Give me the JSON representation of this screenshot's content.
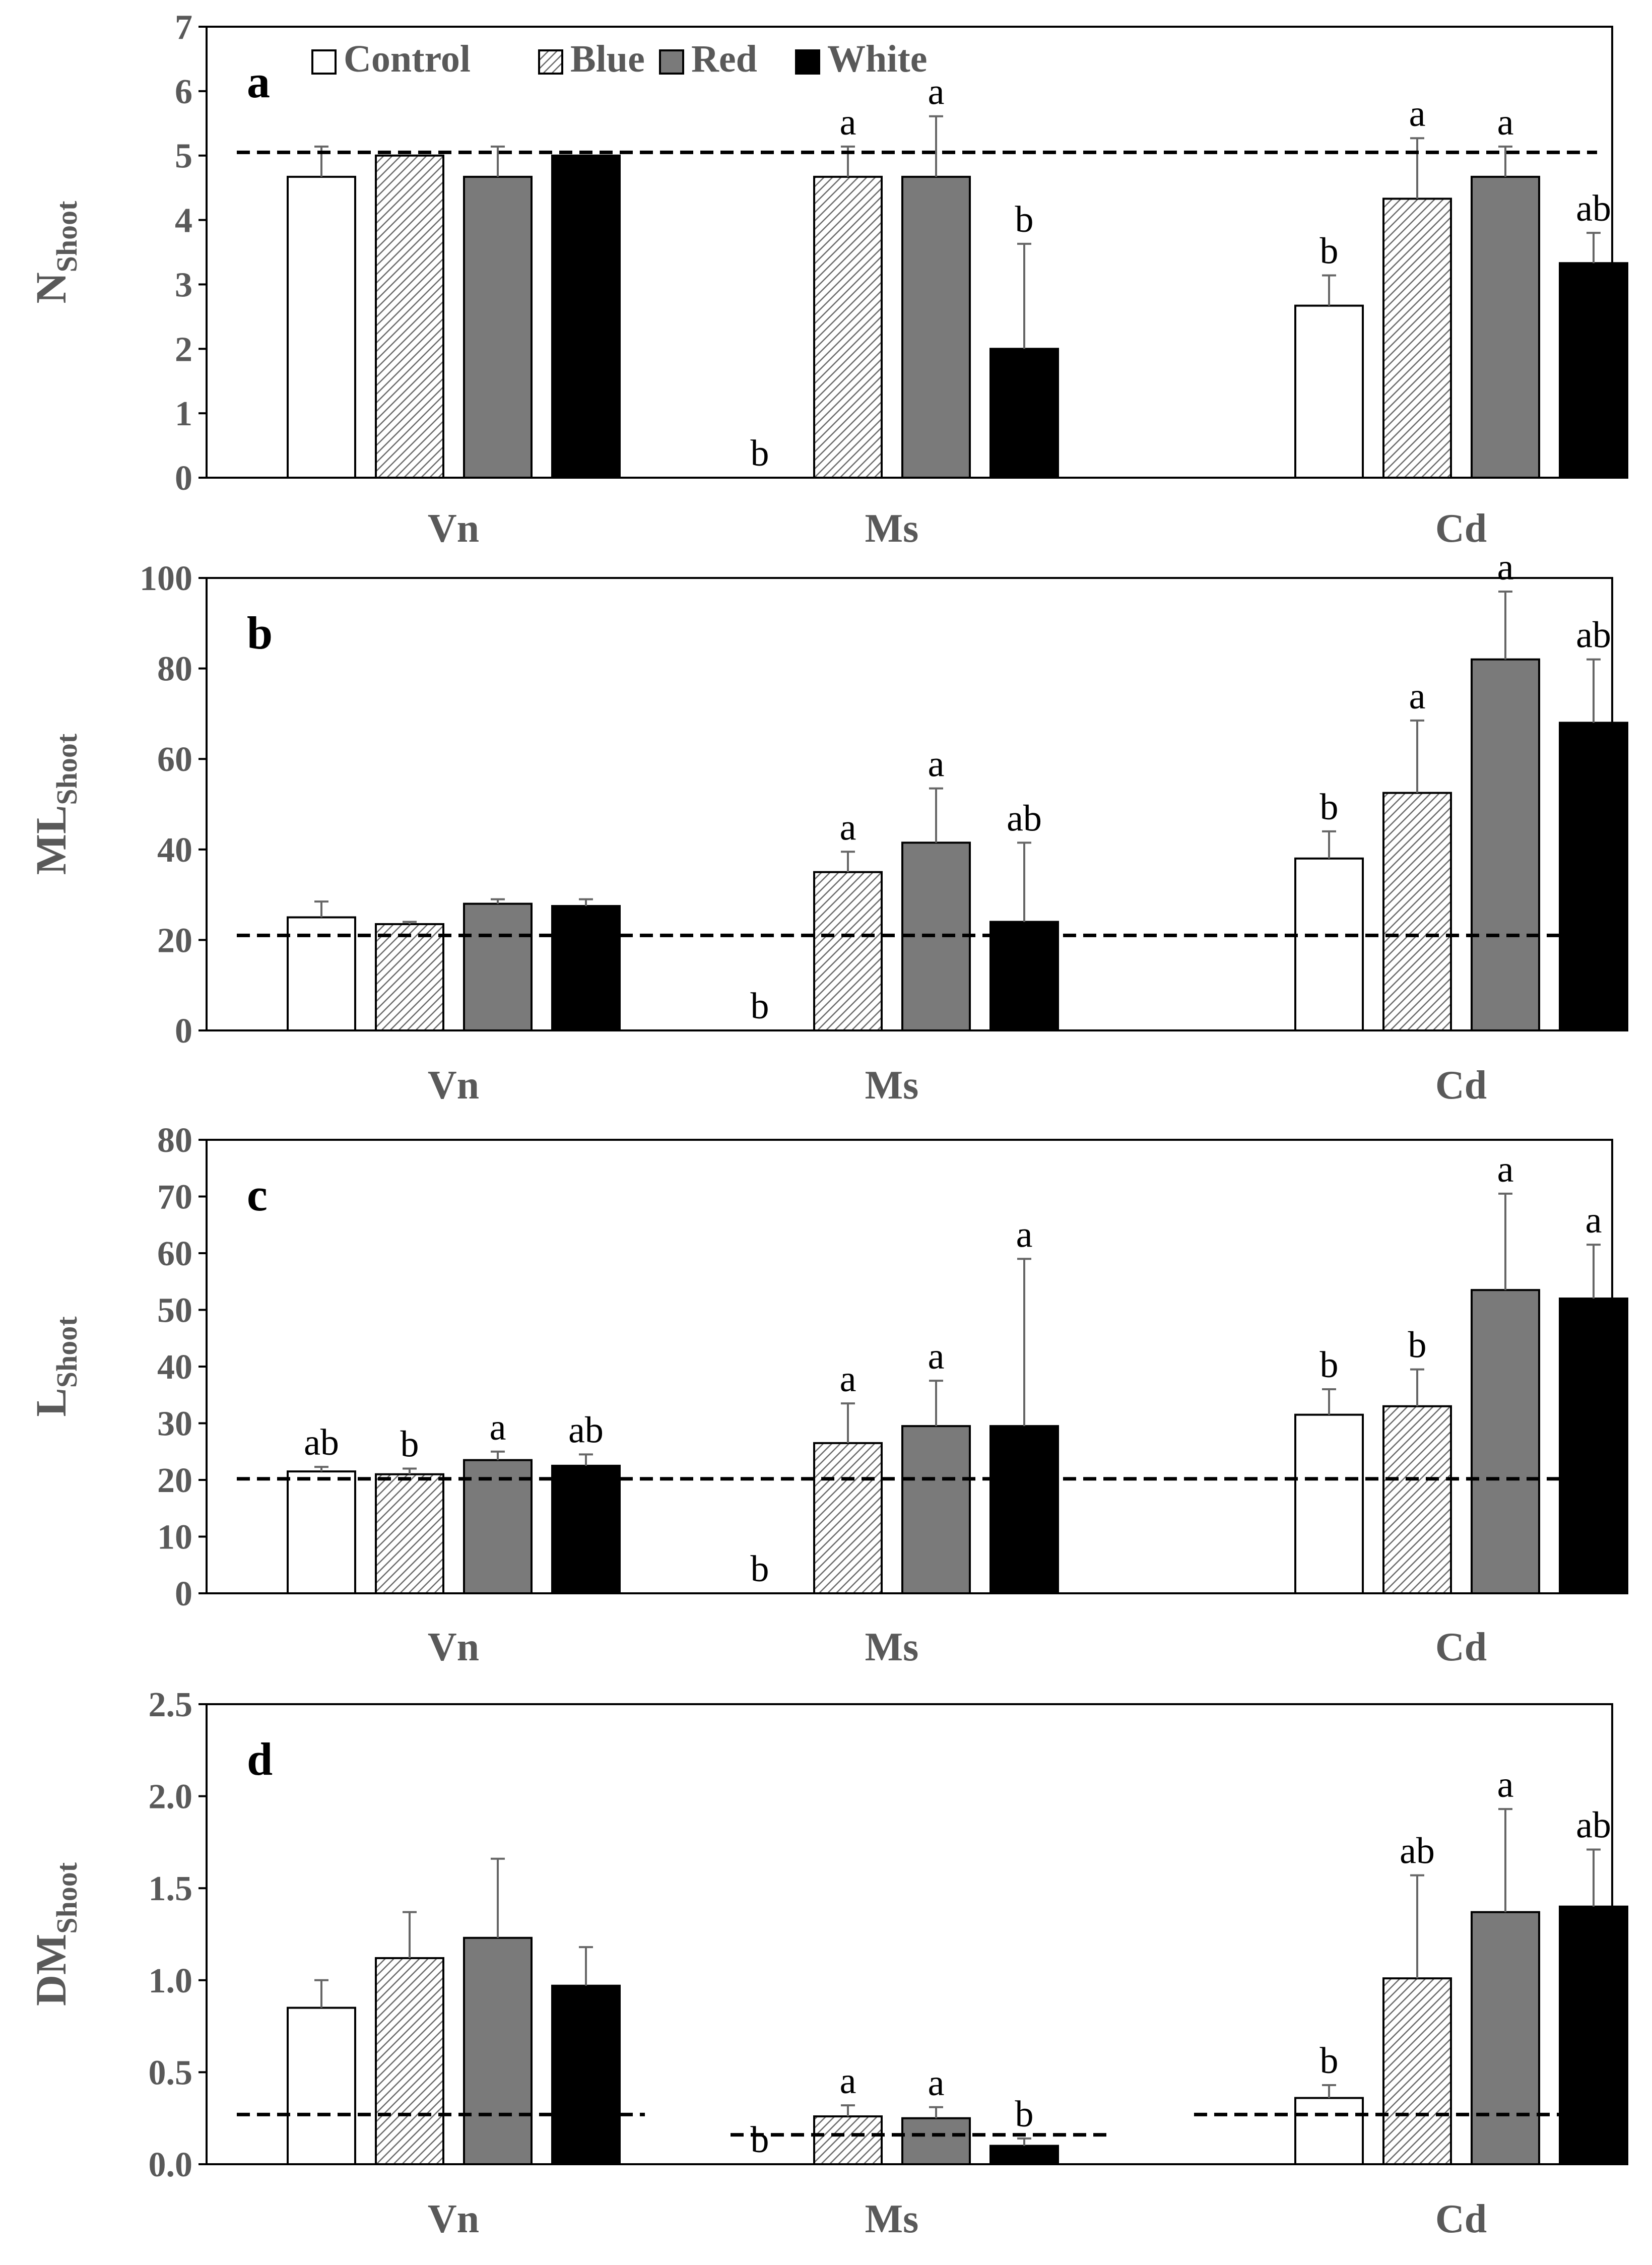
{
  "legend": [
    {
      "name": "Control",
      "style": "control"
    },
    {
      "name": "Blue",
      "style": "blue"
    },
    {
      "name": "Red",
      "style": "red"
    },
    {
      "name": "White",
      "style": "white"
    }
  ],
  "colors": {
    "control": "#ffffff",
    "blue": "#d4d4d4",
    "red": "#7a7a7a",
    "white": "#000000",
    "axis": "#000000",
    "tick_text": "#595959",
    "dashed": "#000000"
  },
  "chart_data": [
    {
      "type": "bar",
      "panel_label": "a",
      "ylabel_main": "N",
      "ylabel_sub": "Shoot",
      "ylim": [
        0,
        7
      ],
      "yticks": [
        "0",
        "1",
        "2",
        "3",
        "4",
        "5",
        "6",
        "7"
      ],
      "categories": [
        "Vn",
        "Ms",
        "Cd"
      ],
      "series": [
        {
          "name": "Control",
          "values": [
            4.67,
            0,
            2.67
          ],
          "errors": [
            0.47,
            0,
            0.47
          ],
          "letters": [
            "",
            "b",
            "b"
          ]
        },
        {
          "name": "Blue",
          "values": [
            5.0,
            4.67,
            4.33
          ],
          "errors": [
            0,
            0.47,
            0.94
          ],
          "letters": [
            "",
            "a",
            "a"
          ]
        },
        {
          "name": "Red",
          "values": [
            4.67,
            4.67,
            4.67
          ],
          "errors": [
            0.47,
            0.94,
            0.47
          ],
          "letters": [
            "",
            "a",
            "a"
          ]
        },
        {
          "name": "White",
          "values": [
            5.0,
            2.0,
            3.33
          ],
          "errors": [
            0,
            1.63,
            0.47
          ],
          "letters": [
            "",
            "b",
            "ab"
          ]
        }
      ],
      "reference_lines": [
        {
          "from": 0,
          "to": 3,
          "value": 5.05
        }
      ]
    },
    {
      "type": "bar",
      "panel_label": "b",
      "ylabel_main": "ML",
      "ylabel_sub": "Shoot",
      "ylim": [
        0,
        100
      ],
      "yticks": [
        "0",
        "20",
        "40",
        "60",
        "80",
        "100"
      ],
      "categories": [
        "Vn",
        "Ms",
        "Cd"
      ],
      "series": [
        {
          "name": "Control",
          "values": [
            25,
            0,
            38
          ],
          "errors": [
            3.5,
            0,
            6
          ],
          "letters": [
            "",
            "b",
            "b"
          ]
        },
        {
          "name": "Blue",
          "values": [
            23.5,
            35,
            52.5
          ],
          "errors": [
            0.5,
            4.5,
            16
          ],
          "letters": [
            "",
            "a",
            "a"
          ]
        },
        {
          "name": "Red",
          "values": [
            28,
            41.5,
            82
          ],
          "errors": [
            1,
            12,
            15
          ],
          "letters": [
            "",
            "a",
            "a"
          ]
        },
        {
          "name": "White",
          "values": [
            27.5,
            24,
            68
          ],
          "errors": [
            1.5,
            17.5,
            14
          ],
          "letters": [
            "",
            "ab",
            "ab"
          ]
        }
      ],
      "reference_lines": [
        {
          "from": 0,
          "to": 3,
          "value": 21
        }
      ]
    },
    {
      "type": "bar",
      "panel_label": "c",
      "ylabel_main": "L",
      "ylabel_sub": "Shoot",
      "ylim": [
        0,
        80
      ],
      "yticks": [
        "0",
        "10",
        "20",
        "30",
        "40",
        "50",
        "60",
        "70",
        "80"
      ],
      "categories": [
        "Vn",
        "Ms",
        "Cd"
      ],
      "series": [
        {
          "name": "Control",
          "values": [
            21.5,
            0,
            31.5
          ],
          "errors": [
            0.8,
            0,
            4.5
          ],
          "letters": [
            "ab",
            "b",
            "b"
          ]
        },
        {
          "name": "Blue",
          "values": [
            21,
            26.5,
            33
          ],
          "errors": [
            1,
            7,
            6.5
          ],
          "letters": [
            "b",
            "a",
            "b"
          ]
        },
        {
          "name": "Red",
          "values": [
            23.5,
            29.5,
            53.5
          ],
          "errors": [
            1.5,
            8,
            17
          ],
          "letters": [
            "a",
            "a",
            "a"
          ]
        },
        {
          "name": "White",
          "values": [
            22.5,
            29.5,
            52
          ],
          "errors": [
            2,
            29.5,
            9.5
          ],
          "letters": [
            "ab",
            "a",
            "a"
          ]
        }
      ],
      "reference_lines": [
        {
          "from": 0,
          "to": 3,
          "value": 20.2
        }
      ]
    },
    {
      "type": "bar",
      "panel_label": "d",
      "ylabel_main": "DM",
      "ylabel_sub": "Shoot",
      "ylim": [
        0,
        2.5
      ],
      "yticks": [
        "0.0",
        "0.5",
        "1.0",
        "1.5",
        "2.0",
        "2.5"
      ],
      "categories": [
        "Vn",
        "Ms",
        "Cd"
      ],
      "series": [
        {
          "name": "Control",
          "values": [
            0.85,
            0,
            0.36
          ],
          "errors": [
            0.15,
            0,
            0.07
          ],
          "letters": [
            "",
            "b",
            "b"
          ]
        },
        {
          "name": "Blue",
          "values": [
            1.12,
            0.26,
            1.01
          ],
          "errors": [
            0.25,
            0.06,
            0.56
          ],
          "letters": [
            "",
            "a",
            "ab"
          ]
        },
        {
          "name": "Red",
          "values": [
            1.23,
            0.25,
            1.37
          ],
          "errors": [
            0.43,
            0.06,
            0.56
          ],
          "letters": [
            "",
            "a",
            "a"
          ]
        },
        {
          "name": "White",
          "values": [
            0.97,
            0.1,
            1.4
          ],
          "errors": [
            0.21,
            0.04,
            0.31
          ],
          "letters": [
            "",
            "b",
            "ab"
          ]
        }
      ],
      "reference_lines": [
        {
          "from": 0,
          "to": 1,
          "value": 0.27
        },
        {
          "from": 1,
          "to": 2,
          "value": 0.16
        },
        {
          "from": 2,
          "to": 3,
          "value": 0.27
        }
      ]
    }
  ]
}
